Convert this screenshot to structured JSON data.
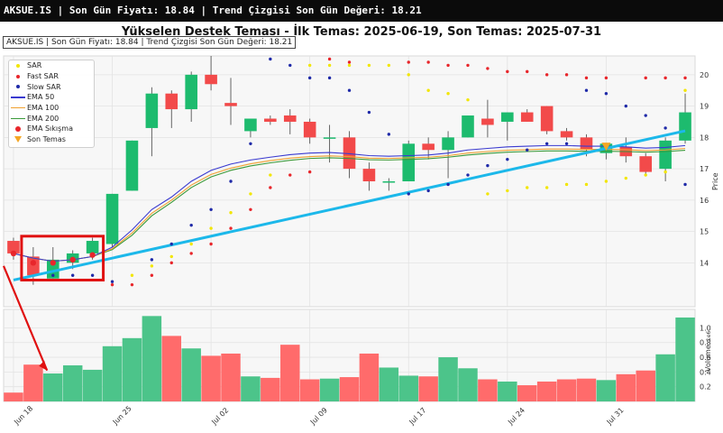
{
  "topbar": {
    "text": "AKSUE.IS | Son Gün Fiyatı: 18.84 | Trend Çizgisi Son Gün Değeri: 18.21"
  },
  "title": "Yükselen Destek Teması - İlk Temas: 2025-06-19, Son Temas: 2025-07-31",
  "info_box": "AKSUE.IS | Son Gün Fiyatı: 18.84 | Trend Çizgisi Son Gün Değeri: 18.21",
  "legend": [
    {
      "label": "SAR",
      "symbol": "dot",
      "color": "#f2e600"
    },
    {
      "label": "Fast SAR",
      "symbol": "dot",
      "color": "#e8262b"
    },
    {
      "label": "Slow SAR",
      "symbol": "dot",
      "color": "#1f2aa8"
    },
    {
      "label": "EMA 50",
      "symbol": "line",
      "color": "#3a3ad0"
    },
    {
      "label": "EMA 100",
      "symbol": "line",
      "color": "#f0a030"
    },
    {
      "label": "EMA 200",
      "symbol": "line",
      "color": "#3a9a3a"
    },
    {
      "label": "EMA Sıkışma",
      "symbol": "dot",
      "color": "#e8262b"
    },
    {
      "label": "Son Temas",
      "symbol": "triangle",
      "color": "#f5a623"
    }
  ],
  "chart_data": {
    "type": "candlestick",
    "ylabel": "Price",
    "volume_label": "Volume",
    "volume_exponent": "1e6",
    "ylim": [
      12.6,
      20.6
    ],
    "volume_ylim": [
      0,
      1.25
    ],
    "y_ticks": [
      14,
      15,
      16,
      17,
      18,
      19,
      20
    ],
    "volume_ticks": [
      0.2,
      0.4,
      0.6,
      0.8,
      1.0
    ],
    "x_ticks": [
      {
        "index": 0,
        "label": "Jun 18"
      },
      {
        "index": 5,
        "label": "Jun 25"
      },
      {
        "index": 10,
        "label": "Jul 02"
      },
      {
        "index": 15,
        "label": "Jul 09"
      },
      {
        "index": 20,
        "label": "Jul 17"
      },
      {
        "index": 25,
        "label": "Jul 24"
      },
      {
        "index": 30,
        "label": "Jul 31"
      }
    ],
    "candles": [
      {
        "o": 14.7,
        "h": 14.8,
        "l": 14.1,
        "c": 14.3,
        "v": 0.12
      },
      {
        "o": 14.2,
        "h": 14.5,
        "l": 13.3,
        "c": 13.6,
        "v": 0.5
      },
      {
        "o": 13.5,
        "h": 14.5,
        "l": 13.5,
        "c": 14.1,
        "v": 0.38
      },
      {
        "o": 14.0,
        "h": 14.4,
        "l": 13.8,
        "c": 14.3,
        "v": 0.49
      },
      {
        "o": 14.3,
        "h": 14.8,
        "l": 14.1,
        "c": 14.7,
        "v": 0.43
      },
      {
        "o": 14.6,
        "h": 16.2,
        "l": 14.5,
        "c": 16.2,
        "v": 0.75
      },
      {
        "o": 16.3,
        "h": 17.9,
        "l": 16.3,
        "c": 17.9,
        "v": 0.86
      },
      {
        "o": 18.3,
        "h": 19.6,
        "l": 17.4,
        "c": 19.4,
        "v": 1.16
      },
      {
        "o": 19.4,
        "h": 19.5,
        "l": 18.3,
        "c": 18.9,
        "v": 0.89
      },
      {
        "o": 18.9,
        "h": 20.1,
        "l": 18.5,
        "c": 20.0,
        "v": 0.72
      },
      {
        "o": 20.0,
        "h": 20.6,
        "l": 19.5,
        "c": 19.7,
        "v": 0.62
      },
      {
        "o": 19.1,
        "h": 19.9,
        "l": 18.4,
        "c": 19.0,
        "v": 0.65
      },
      {
        "o": 18.2,
        "h": 18.6,
        "l": 18.0,
        "c": 18.6,
        "v": 0.34
      },
      {
        "o": 18.6,
        "h": 18.7,
        "l": 18.4,
        "c": 18.5,
        "v": 0.32
      },
      {
        "o": 18.7,
        "h": 18.9,
        "l": 18.1,
        "c": 18.5,
        "v": 0.77
      },
      {
        "o": 18.5,
        "h": 18.6,
        "l": 17.8,
        "c": 18.0,
        "v": 0.3
      },
      {
        "o": 18.0,
        "h": 18.4,
        "l": 17.2,
        "c": 18.0,
        "v": 0.31
      },
      {
        "o": 18.0,
        "h": 18.2,
        "l": 16.7,
        "c": 17.0,
        "v": 0.33
      },
      {
        "o": 17.0,
        "h": 17.2,
        "l": 16.3,
        "c": 16.6,
        "v": 0.65
      },
      {
        "o": 16.6,
        "h": 16.7,
        "l": 16.3,
        "c": 16.6,
        "v": 0.46
      },
      {
        "o": 16.6,
        "h": 17.9,
        "l": 16.6,
        "c": 17.8,
        "v": 0.35
      },
      {
        "o": 17.8,
        "h": 18.0,
        "l": 17.3,
        "c": 17.6,
        "v": 0.34
      },
      {
        "o": 17.6,
        "h": 18.2,
        "l": 16.7,
        "c": 18.0,
        "v": 0.6
      },
      {
        "o": 18.0,
        "h": 18.7,
        "l": 18.0,
        "c": 18.7,
        "v": 0.45
      },
      {
        "o": 18.6,
        "h": 19.2,
        "l": 18.0,
        "c": 18.4,
        "v": 0.3
      },
      {
        "o": 18.5,
        "h": 18.8,
        "l": 17.9,
        "c": 18.8,
        "v": 0.27
      },
      {
        "o": 18.8,
        "h": 18.9,
        "l": 18.5,
        "c": 18.5,
        "v": 0.22
      },
      {
        "o": 19.0,
        "h": 19.0,
        "l": 18.1,
        "c": 18.2,
        "v": 0.27
      },
      {
        "o": 18.2,
        "h": 18.3,
        "l": 17.9,
        "c": 18.0,
        "v": 0.3
      },
      {
        "o": 18.0,
        "h": 18.1,
        "l": 17.4,
        "c": 17.6,
        "v": 0.31
      },
      {
        "o": 17.5,
        "h": 17.8,
        "l": 17.3,
        "c": 17.8,
        "v": 0.29
      },
      {
        "o": 17.7,
        "h": 18.0,
        "l": 17.2,
        "c": 17.4,
        "v": 0.37
      },
      {
        "o": 17.4,
        "h": 17.5,
        "l": 16.8,
        "c": 16.9,
        "v": 0.42
      },
      {
        "o": 17.0,
        "h": 18.0,
        "l": 16.6,
        "c": 17.9,
        "v": 0.64
      },
      {
        "o": 17.9,
        "h": 19.4,
        "l": 17.8,
        "c": 18.8,
        "v": 1.14
      }
    ],
    "ema50": [
      14.3,
      14.15,
      14.05,
      14.1,
      14.2,
      14.5,
      15.05,
      15.7,
      16.1,
      16.6,
      16.95,
      17.15,
      17.28,
      17.37,
      17.45,
      17.5,
      17.52,
      17.48,
      17.42,
      17.4,
      17.42,
      17.44,
      17.5,
      17.6,
      17.65,
      17.7,
      17.72,
      17.74,
      17.74,
      17.72,
      17.72,
      17.7,
      17.66,
      17.68,
      17.74
    ],
    "ema100": [
      14.3,
      14.15,
      14.05,
      14.1,
      14.2,
      14.45,
      14.95,
      15.58,
      16.0,
      16.48,
      16.82,
      17.02,
      17.16,
      17.26,
      17.34,
      17.39,
      17.41,
      17.39,
      17.34,
      17.33,
      17.35,
      17.37,
      17.42,
      17.5,
      17.55,
      17.59,
      17.61,
      17.63,
      17.63,
      17.62,
      17.62,
      17.61,
      17.58,
      17.6,
      17.65
    ],
    "ema200": [
      14.3,
      14.15,
      14.05,
      14.1,
      14.2,
      14.42,
      14.88,
      15.5,
      15.93,
      16.4,
      16.74,
      16.95,
      17.09,
      17.19,
      17.27,
      17.33,
      17.35,
      17.33,
      17.29,
      17.28,
      17.3,
      17.32,
      17.37,
      17.44,
      17.49,
      17.53,
      17.55,
      17.57,
      17.57,
      17.56,
      17.56,
      17.55,
      17.53,
      17.55,
      17.59
    ],
    "sar": [
      null,
      null,
      null,
      null,
      null,
      null,
      13.6,
      13.9,
      14.2,
      14.6,
      15.1,
      15.6,
      16.2,
      16.8,
      null,
      20.3,
      20.3,
      20.3,
      20.3,
      20.3,
      20.0,
      19.5,
      19.4,
      19.2,
      16.2,
      16.3,
      16.4,
      16.4,
      16.5,
      16.5,
      16.6,
      16.7,
      16.8,
      16.9,
      19.5
    ],
    "fast_sar": [
      null,
      null,
      null,
      null,
      null,
      13.3,
      13.3,
      13.6,
      14.0,
      14.3,
      14.6,
      15.1,
      15.7,
      16.4,
      16.8,
      16.9,
      20.5,
      20.4,
      null,
      null,
      20.4,
      20.4,
      20.3,
      20.3,
      20.2,
      20.1,
      20.1,
      20.0,
      20.0,
      19.9,
      19.9,
      null,
      19.9,
      19.9,
      19.9
    ],
    "slow_sar": [
      null,
      null,
      13.6,
      13.6,
      13.6,
      13.4,
      null,
      14.1,
      14.6,
      15.2,
      15.7,
      16.6,
      17.8,
      20.5,
      20.3,
      19.9,
      19.9,
      19.5,
      18.8,
      18.1,
      16.2,
      16.3,
      16.5,
      16.8,
      17.1,
      17.3,
      17.6,
      17.8,
      17.8,
      19.5,
      19.4,
      19.0,
      18.7,
      18.3,
      16.5
    ],
    "ema_squeeze": [
      {
        "index": 0,
        "y": 14.3
      },
      {
        "index": 1,
        "y": 14.0
      },
      {
        "index": 2,
        "y": 14.0
      },
      {
        "index": 3,
        "y": 14.1
      },
      {
        "index": 4,
        "y": 14.25
      }
    ],
    "trend_line": {
      "start": {
        "index": 0,
        "y": 13.45
      },
      "end": {
        "index": 34,
        "y": 18.21
      }
    },
    "last_touch": {
      "index": 30,
      "y": 17.72
    }
  }
}
